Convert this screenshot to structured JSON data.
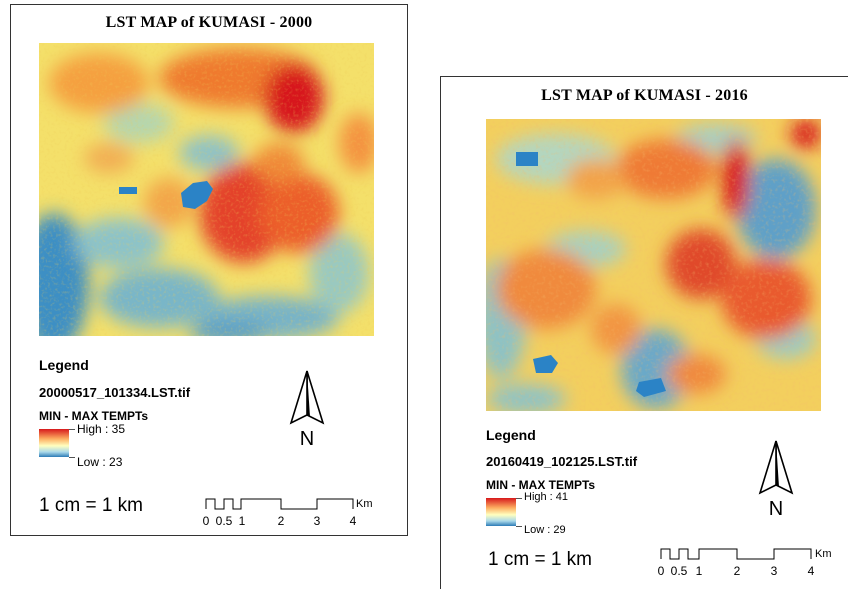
{
  "maps": [
    {
      "title": "LST MAP of KUMASI - 2000",
      "legend_heading": "Legend",
      "file_name": "20000517_101334.LST.tif",
      "range_title": "MIN - MAX TEMPTs",
      "high_label": "High : 35",
      "low_label": "Low : 23",
      "scale_text": "1 cm = 1 km",
      "scale_ticks": [
        "0",
        "0.5",
        "1",
        "2",
        "3",
        "4"
      ],
      "scale_unit": "Km",
      "north_label": "N"
    },
    {
      "title": "LST MAP of KUMASI - 2016",
      "legend_heading": "Legend",
      "file_name": "20160419_102125.LST.tif",
      "range_title": "MIN - MAX TEMPTs",
      "high_label": "High : 41",
      "low_label": "Low : 29",
      "scale_text": "1 cm = 1 km",
      "scale_ticks": [
        "0",
        "0.5",
        "1",
        "2",
        "3",
        "4"
      ],
      "scale_unit": "Km",
      "north_label": "N"
    }
  ],
  "colors": {
    "high": "#d7191c",
    "mid_high": "#fdae61",
    "mid": "#ffffbf",
    "mid_low": "#abd9e9",
    "low": "#2c7bb6",
    "water": "#2b83c6"
  }
}
